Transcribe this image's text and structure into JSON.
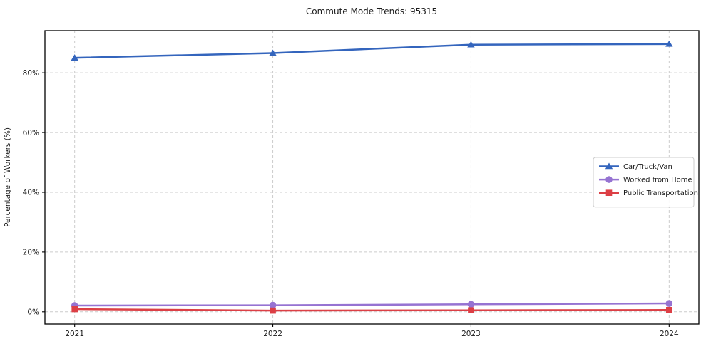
{
  "title": "Commute Mode Trends: 95315",
  "chart_data": {
    "type": "line",
    "title": "Commute Mode Trends: 95315",
    "xlabel": "",
    "ylabel": "Percentage of Workers (%)",
    "x": [
      2021,
      2022,
      2023,
      2024
    ],
    "x_tick_labels": [
      "2021",
      "2022",
      "2023",
      "2024"
    ],
    "y_ticks": [
      0,
      20,
      40,
      60,
      80
    ],
    "y_tick_labels": [
      "0%",
      "20%",
      "40%",
      "60%",
      "80%"
    ],
    "xlim": [
      2020.85,
      2024.15
    ],
    "ylim": [
      -4.1,
      94.1
    ],
    "grid": true,
    "grid_style": "dashed",
    "legend_position": "center-right",
    "series": [
      {
        "name": "Car/Truck/Van",
        "marker": "triangle",
        "color": "#3465bd",
        "values": [
          85.0,
          86.6,
          89.4,
          89.6
        ]
      },
      {
        "name": "Worked from Home",
        "marker": "circle",
        "color": "#9673d2",
        "values": [
          2.1,
          2.2,
          2.5,
          2.8
        ]
      },
      {
        "name": "Public Transportation",
        "marker": "square",
        "color": "#dc3f45",
        "values": [
          0.9,
          0.4,
          0.5,
          0.6
        ]
      }
    ],
    "colors": {
      "grid": "#cccccc",
      "spine": "#000000",
      "background": "#ffffff",
      "legend_border": "#cccccc"
    }
  }
}
